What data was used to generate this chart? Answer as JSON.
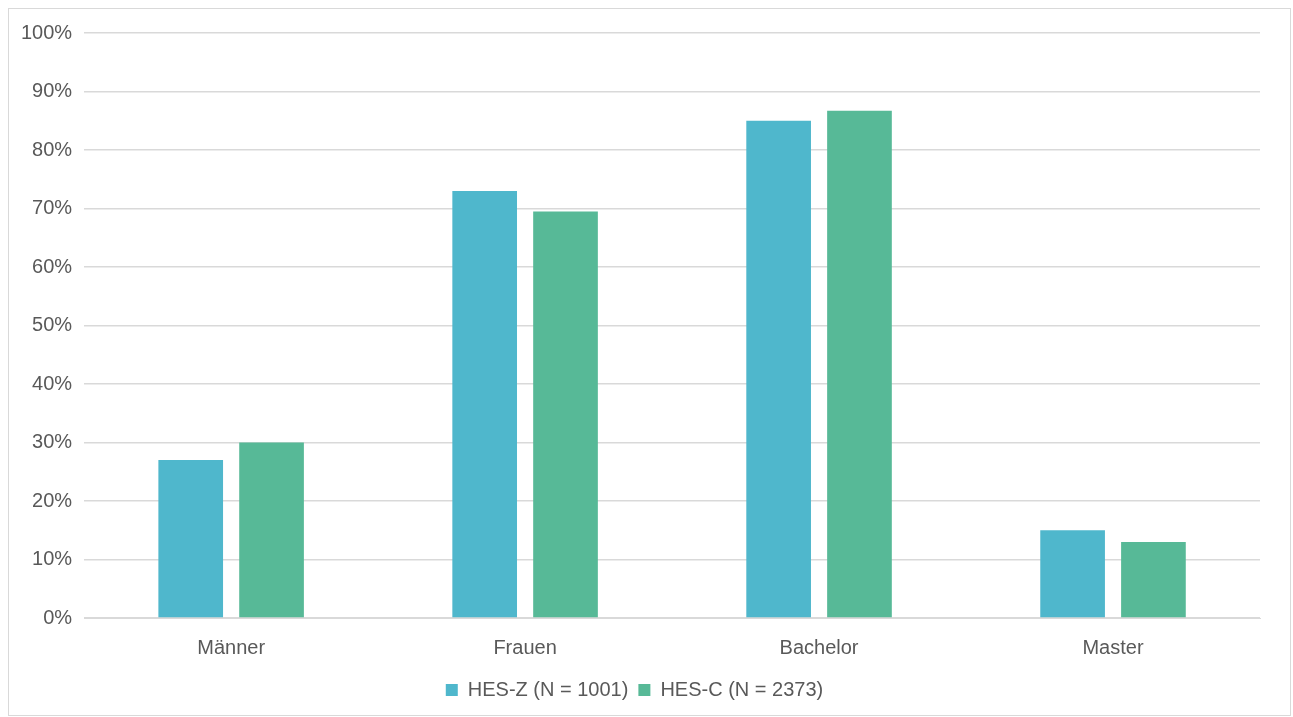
{
  "chart_data": {
    "type": "bar",
    "categories": [
      "Männer",
      "Frauen",
      "Bachelor",
      "Master"
    ],
    "series": [
      {
        "name": "HES-Z (N = 1001)",
        "color": "#4fb7cc",
        "values": [
          27,
          73,
          85,
          15
        ]
      },
      {
        "name": "HES-C (N = 2373)",
        "color": "#57b997",
        "values": [
          30,
          69.5,
          86.7,
          13
        ]
      }
    ],
    "ylim": [
      0,
      100
    ],
    "yticks": [
      {
        "value": 0,
        "label": "0%"
      },
      {
        "value": 10,
        "label": "10%"
      },
      {
        "value": 20,
        "label": "20%"
      },
      {
        "value": 30,
        "label": "30%"
      },
      {
        "value": 40,
        "label": "40%"
      },
      {
        "value": 50,
        "label": "50%"
      },
      {
        "value": 60,
        "label": "60%"
      },
      {
        "value": 70,
        "label": "70%"
      },
      {
        "value": 80,
        "label": "80%"
      },
      {
        "value": 90,
        "label": "90%"
      },
      {
        "value": 100,
        "label": "100%"
      }
    ],
    "grid": "y",
    "legend": "bottom"
  }
}
